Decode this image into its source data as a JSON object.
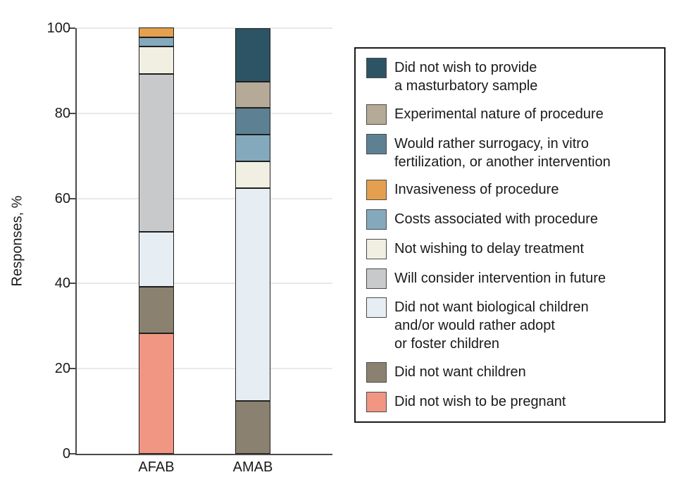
{
  "chart_data": {
    "type": "bar",
    "stacked": true,
    "title": "",
    "xlabel": "",
    "ylabel": "Responses, %",
    "ylim": [
      0,
      100
    ],
    "yticks": [
      0,
      20,
      40,
      60,
      80,
      100
    ],
    "grid": "horizontal",
    "legend_position": "right",
    "categories": [
      "AFAB",
      "AMAB"
    ],
    "series": [
      {
        "key": "pregnant",
        "label": "Did not wish to be pregnant",
        "color": "#F09683",
        "values": [
          28.3,
          0
        ]
      },
      {
        "key": "no-children",
        "label": "Did not want children",
        "color": "#8B8170",
        "values": [
          10.9,
          12.5
        ]
      },
      {
        "key": "no-biological",
        "label": "Did not want biological children\nand/or would rather adopt\nor foster children",
        "color": "#E6EEF3",
        "values": [
          13.0,
          50.0
        ]
      },
      {
        "key": "consider-future",
        "label": "Will consider intervention in future",
        "color": "#C8C9CB",
        "values": [
          37.0,
          0
        ]
      },
      {
        "key": "delay-treatment",
        "label": "Not wishing to delay treatment",
        "color": "#F0EFE2",
        "values": [
          6.5,
          6.25
        ]
      },
      {
        "key": "costs",
        "label": "Costs associated with procedure",
        "color": "#84A9BC",
        "values": [
          2.2,
          6.25
        ]
      },
      {
        "key": "invasiveness",
        "label": "Invasiveness of procedure",
        "color": "#E5A04F",
        "values": [
          2.2,
          0
        ]
      },
      {
        "key": "surrogacy",
        "label": "Would rather surrogacy, in vitro\nfertilization, or another intervention",
        "color": "#5D8193",
        "values": [
          0,
          6.25
        ]
      },
      {
        "key": "experimental",
        "label": "Experimental nature of procedure",
        "color": "#B5A997",
        "values": [
          0,
          6.25
        ]
      },
      {
        "key": "masturbatory-sample",
        "label": "Did not wish to provide\na masturbatory sample",
        "color": "#2D5464",
        "values": [
          0,
          12.5
        ]
      }
    ],
    "legend_order": "top entry corresponds to top of stack"
  },
  "colors": {
    "axis": "#4a4a4a",
    "gridline": "#e9e9e9",
    "segment_border": "#1f1f1f",
    "text": "#1a1a1a",
    "background": "#ffffff"
  }
}
